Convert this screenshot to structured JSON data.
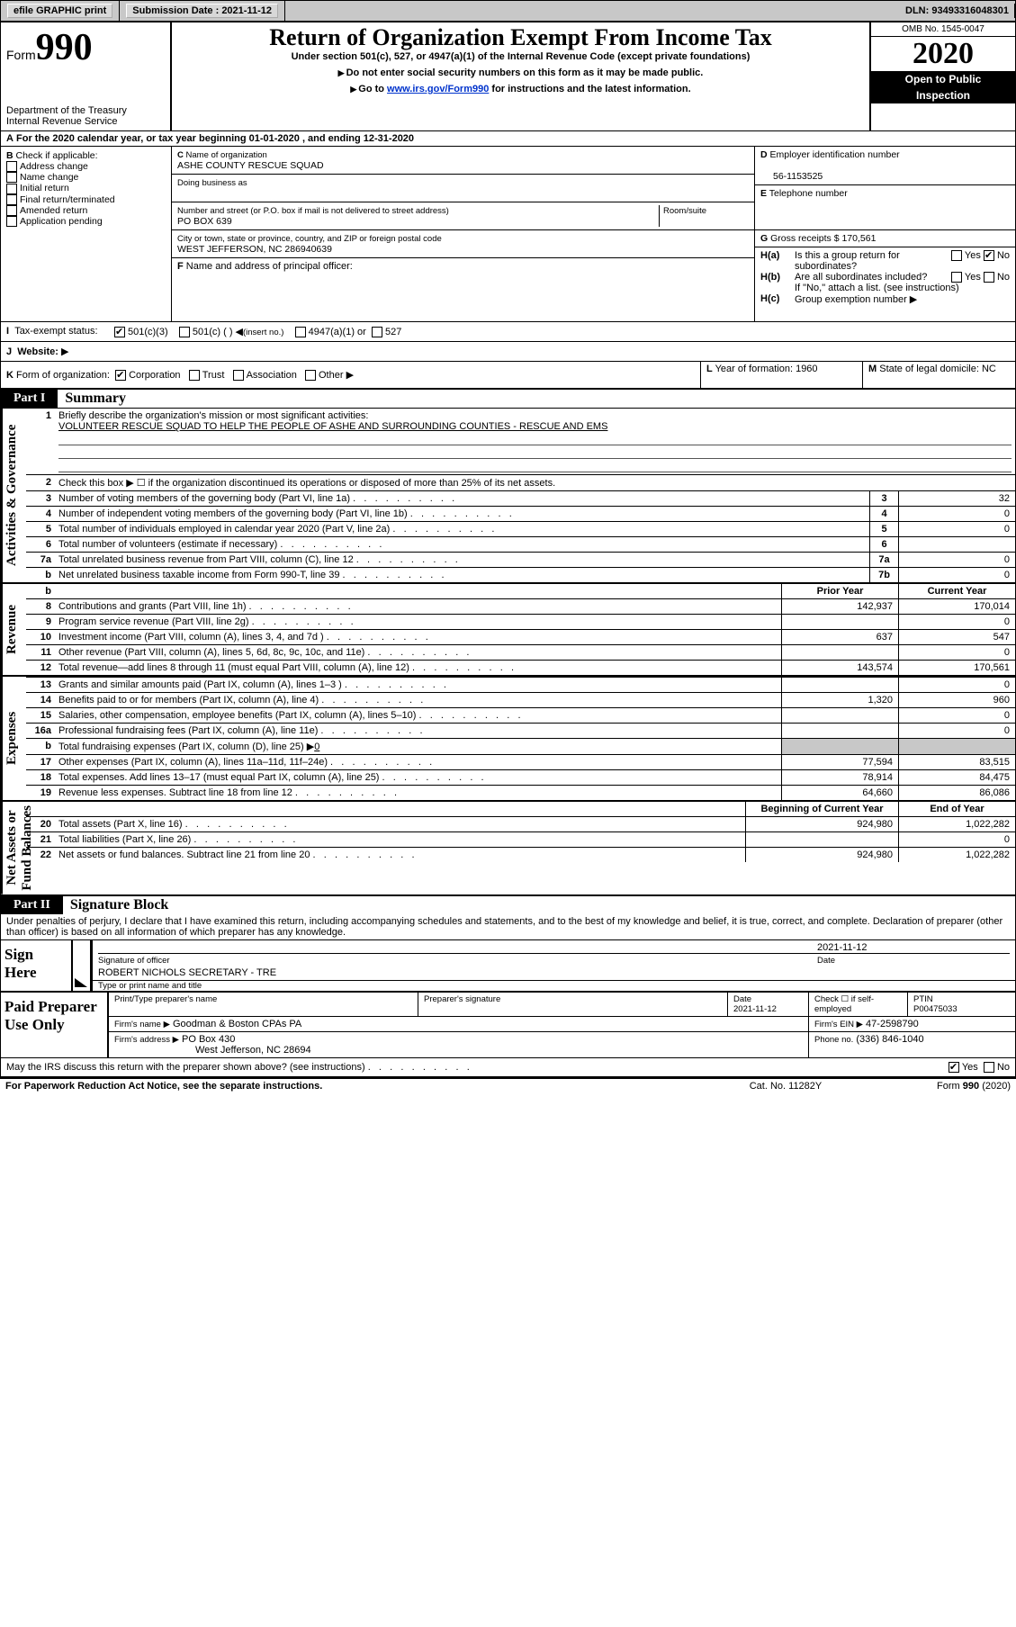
{
  "topbar": {
    "efile": "efile GRAPHIC print",
    "submission_label": "Submission Date : 2021-11-12",
    "dln": "DLN: 93493316048301"
  },
  "header": {
    "form_word": "Form",
    "form_num": "990",
    "dept1": "Department of the Treasury",
    "dept2": "Internal Revenue Service",
    "title": "Return of Organization Exempt From Income Tax",
    "sub1": "Under section 501(c), 527, or 4947(a)(1) of the Internal Revenue Code (except private foundations)",
    "sub2": "Do not enter social security numbers on this form as it may be made public.",
    "sub3a": "Go to ",
    "sub3link": "www.irs.gov/Form990",
    "sub3b": " for instructions and the latest information.",
    "omb": "OMB No. 1545-0047",
    "year": "2020",
    "open1": "Open to Public",
    "open2": "Inspection"
  },
  "lineA": "For the 2020 calendar year, or tax year beginning 01-01-2020   , and ending 12-31-2020",
  "blockB": {
    "intro": "Check if applicable:",
    "items": [
      "Address change",
      "Name change",
      "Initial return",
      "Final return/terminated",
      "Amended return",
      "Application pending"
    ]
  },
  "blockC": {
    "c_label": "Name of organization",
    "c_val": "ASHE COUNTY RESCUE SQUAD",
    "dba": "Doing business as",
    "addr_label": "Number and street (or P.O. box if mail is not delivered to street address)",
    "addr_val": "PO BOX 639",
    "room": "Room/suite",
    "city_label": "City or town, state or province, country, and ZIP or foreign postal code",
    "city_val": "WEST JEFFERSON, NC  286940639",
    "f_label": "Name and address of principal officer:"
  },
  "blockD": {
    "d_label": "Employer identification number",
    "d_val": "56-1153525",
    "e_label": "Telephone number",
    "g_label": "Gross receipts $ 170,561",
    "ha": "Is this a group return for",
    "ha2": "subordinates?",
    "hb": "Are all subordinates included?",
    "hb2": "If \"No,\" attach a list. (see instructions)",
    "hc": "Group exemption number"
  },
  "taxstatus": {
    "label": "Tax-exempt status:",
    "o1": "501(c)(3)",
    "o2": "501(c) (   )",
    "o2b": "(insert no.)",
    "o3": "4947(a)(1) or",
    "o4": "527"
  },
  "website_label": "Website:",
  "lineK": {
    "label": "Form of organization:",
    "opts": [
      "Corporation",
      "Trust",
      "Association",
      "Other"
    ],
    "l": "Year of formation: 1960",
    "m": "State of legal domicile: NC"
  },
  "part1": {
    "tag": "Part I",
    "title": "Summary"
  },
  "gov": {
    "l1_label": "Briefly describe the organization's mission or most significant activities:",
    "l1_val": "VOLUNTEER RESCUE SQUAD TO HELP THE PEOPLE OF ASHE AND SURROUNDING COUNTIES - RESCUE AND EMS",
    "l2": "Check this box ▶ ☐  if the organization discontinued its operations or disposed of more than 25% of its net assets.",
    "rows": [
      {
        "n": "3",
        "t": "Number of voting members of the governing body (Part VI, line 1a)",
        "b": "3",
        "v": "32"
      },
      {
        "n": "4",
        "t": "Number of independent voting members of the governing body (Part VI, line 1b)",
        "b": "4",
        "v": "0"
      },
      {
        "n": "5",
        "t": "Total number of individuals employed in calendar year 2020 (Part V, line 2a)",
        "b": "5",
        "v": "0"
      },
      {
        "n": "6",
        "t": "Total number of volunteers (estimate if necessary)",
        "b": "6",
        "v": ""
      },
      {
        "n": "7a",
        "t": "Total unrelated business revenue from Part VIII, column (C), line 12",
        "b": "7a",
        "v": "0"
      },
      {
        "n": "b",
        "t": "Net unrelated business taxable income from Form 990-T, line 39",
        "b": "7b",
        "v": "0"
      }
    ]
  },
  "colhdr": {
    "py": "Prior Year",
    "cy": "Current Year",
    "bcy": "Beginning of Current Year",
    "eoy": "End of Year"
  },
  "rev": {
    "rows": [
      {
        "n": "8",
        "t": "Contributions and grants (Part VIII, line 1h)",
        "p": "142,937",
        "c": "170,014"
      },
      {
        "n": "9",
        "t": "Program service revenue (Part VIII, line 2g)",
        "p": "",
        "c": "0"
      },
      {
        "n": "10",
        "t": "Investment income (Part VIII, column (A), lines 3, 4, and 7d )",
        "p": "637",
        "c": "547"
      },
      {
        "n": "11",
        "t": "Other revenue (Part VIII, column (A), lines 5, 6d, 8c, 9c, 10c, and 11e)",
        "p": "",
        "c": "0"
      },
      {
        "n": "12",
        "t": "Total revenue—add lines 8 through 11 (must equal Part VIII, column (A), line 12)",
        "p": "143,574",
        "c": "170,561"
      }
    ]
  },
  "exp": {
    "rows": [
      {
        "n": "13",
        "t": "Grants and similar amounts paid (Part IX, column (A), lines 1–3 )",
        "p": "",
        "c": "0"
      },
      {
        "n": "14",
        "t": "Benefits paid to or for members (Part IX, column (A), line 4)",
        "p": "1,320",
        "c": "960"
      },
      {
        "n": "15",
        "t": "Salaries, other compensation, employee benefits (Part IX, column (A), lines 5–10)",
        "p": "",
        "c": "0"
      },
      {
        "n": "16a",
        "t": "Professional fundraising fees (Part IX, column (A), line 11e)",
        "p": "",
        "c": "0"
      }
    ],
    "l16b_a": "Total fundraising expenses (Part IX, column (D), line 25) ▶",
    "l16b_v": "0",
    "rows2": [
      {
        "n": "17",
        "t": "Other expenses (Part IX, column (A), lines 11a–11d, 11f–24e)",
        "p": "77,594",
        "c": "83,515"
      },
      {
        "n": "18",
        "t": "Total expenses. Add lines 13–17 (must equal Part IX, column (A), line 25)",
        "p": "78,914",
        "c": "84,475"
      },
      {
        "n": "19",
        "t": "Revenue less expenses. Subtract line 18 from line 12",
        "p": "64,660",
        "c": "86,086"
      }
    ]
  },
  "net": {
    "rows": [
      {
        "n": "20",
        "t": "Total assets (Part X, line 16)",
        "p": "924,980",
        "c": "1,022,282"
      },
      {
        "n": "21",
        "t": "Total liabilities (Part X, line 26)",
        "p": "",
        "c": "0"
      },
      {
        "n": "22",
        "t": "Net assets or fund balances. Subtract line 21 from line 20",
        "p": "924,980",
        "c": "1,022,282"
      }
    ]
  },
  "part2": {
    "tag": "Part II",
    "title": "Signature Block"
  },
  "perjury": "Under penalties of perjury, I declare that I have examined this return, including accompanying schedules and statements, and to the best of my knowledge and belief, it is true, correct, and complete. Declaration of preparer (other than officer) is based on all information of which preparer has any knowledge.",
  "sign": {
    "here": "Sign Here",
    "sig_officer": "Signature of officer",
    "date_lbl": "Date",
    "date_val": "2021-11-12",
    "name_val": "ROBERT NICHOLS SECRETARY - TRE",
    "name_lbl": "Type or print name and title"
  },
  "paid": {
    "left": "Paid Preparer Use Only",
    "h1": "Print/Type preparer's name",
    "h2": "Preparer's signature",
    "h3": "Date",
    "h3v": "2021-11-12",
    "h4": "Check ☐ if self-employed",
    "h5": "PTIN",
    "h5v": "P00475033",
    "firm_n_lbl": "Firm's name    ▶",
    "firm_n": "Goodman & Boston CPAs PA",
    "firm_ein_lbl": "Firm's EIN ▶",
    "firm_ein": "47-2598790",
    "firm_a_lbl": "Firm's address ▶",
    "firm_a1": "PO Box 430",
    "firm_a2": "West Jefferson, NC  28694",
    "phone_lbl": "Phone no.",
    "phone": "(336) 846-1040"
  },
  "footer": {
    "discuss": "May the IRS discuss this return with the preparer shown above? (see instructions)",
    "yes": "Yes",
    "no": "No",
    "pra": "For Paperwork Reduction Act Notice, see the separate instructions.",
    "cat": "Cat. No. 11282Y",
    "form": "Form 990 (2020)"
  },
  "labels": {
    "B": "B",
    "C": "C",
    "D": "D",
    "E": "E",
    "F": "F",
    "G": "G",
    "H_a": "H(a)",
    "H_b": "H(b)",
    "H_c": "H(c)",
    "I": "I",
    "J": "J",
    "K": "K",
    "L": "L",
    "M": "M",
    "yes": "Yes",
    "no": "No"
  }
}
